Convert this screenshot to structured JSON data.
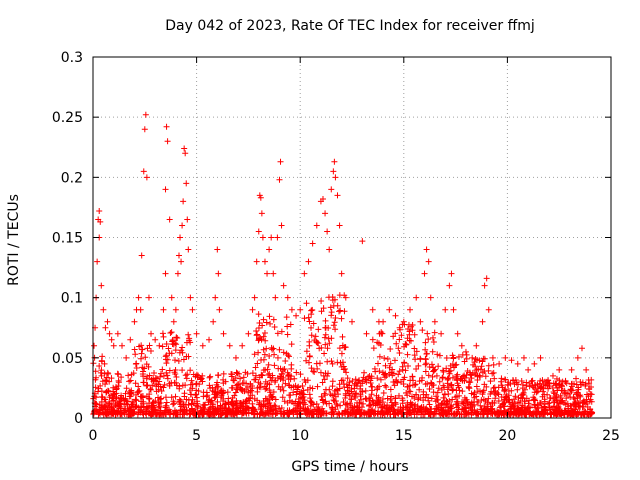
{
  "chart_data": {
    "type": "scatter",
    "title": "Day 042 of 2023, Rate Of TEC Index for receiver ffmj",
    "xlabel": "GPS time / hours",
    "ylabel": "ROTI / TECUs",
    "xlim": [
      0,
      25
    ],
    "ylim": [
      0,
      0.3
    ],
    "x_ticks": [
      0,
      5,
      10,
      15,
      20,
      25
    ],
    "y_ticks": [
      0,
      0.05,
      0.1,
      0.15,
      0.2,
      0.25,
      0.3
    ],
    "x_tick_labels": [
      "0",
      "5",
      "10",
      "15",
      "20",
      "25"
    ],
    "y_tick_labels": [
      "0",
      "0.05",
      "0.1",
      "0.15",
      "0.2",
      "0.25",
      "0.3"
    ],
    "grid": true,
    "marker": "+",
    "color": "#ff0000",
    "series": [
      {
        "values": [
          [
            0.05,
            0.06
          ],
          [
            0.1,
            0.075
          ],
          [
            0.15,
            0.1
          ],
          [
            0.2,
            0.13
          ],
          [
            0.25,
            0.165
          ],
          [
            0.3,
            0.172
          ],
          [
            0.3,
            0.15
          ],
          [
            0.35,
            0.163
          ],
          [
            0.4,
            0.11
          ],
          [
            0.5,
            0.09
          ],
          [
            0.6,
            0.075
          ],
          [
            0.7,
            0.08
          ],
          [
            0.8,
            0.07
          ],
          [
            0.9,
            0.065
          ],
          [
            1.0,
            0.06
          ],
          [
            1.2,
            0.07
          ],
          [
            1.4,
            0.06
          ],
          [
            1.6,
            0.05
          ],
          [
            1.8,
            0.065
          ],
          [
            2.0,
            0.08
          ],
          [
            2.1,
            0.09
          ],
          [
            2.2,
            0.1
          ],
          [
            2.3,
            0.09
          ],
          [
            2.35,
            0.135
          ],
          [
            2.45,
            0.205
          ],
          [
            2.5,
            0.24
          ],
          [
            2.55,
            0.252
          ],
          [
            2.6,
            0.2
          ],
          [
            2.7,
            0.1
          ],
          [
            2.8,
            0.07
          ],
          [
            3.0,
            0.065
          ],
          [
            3.2,
            0.06
          ],
          [
            3.4,
            0.09
          ],
          [
            3.5,
            0.12
          ],
          [
            3.5,
            0.19
          ],
          [
            3.55,
            0.242
          ],
          [
            3.6,
            0.23
          ],
          [
            3.7,
            0.165
          ],
          [
            3.8,
            0.1
          ],
          [
            3.9,
            0.08
          ],
          [
            4.0,
            0.09
          ],
          [
            4.1,
            0.12
          ],
          [
            4.15,
            0.135
          ],
          [
            4.2,
            0.15
          ],
          [
            4.25,
            0.13
          ],
          [
            4.3,
            0.16
          ],
          [
            4.35,
            0.18
          ],
          [
            4.4,
            0.224
          ],
          [
            4.45,
            0.22
          ],
          [
            4.5,
            0.195
          ],
          [
            4.55,
            0.165
          ],
          [
            4.6,
            0.14
          ],
          [
            4.7,
            0.1
          ],
          [
            4.8,
            0.09
          ],
          [
            5.0,
            0.07
          ],
          [
            5.3,
            0.06
          ],
          [
            5.6,
            0.065
          ],
          [
            5.8,
            0.08
          ],
          [
            5.9,
            0.1
          ],
          [
            6.0,
            0.14
          ],
          [
            6.05,
            0.12
          ],
          [
            6.1,
            0.09
          ],
          [
            6.3,
            0.07
          ],
          [
            6.6,
            0.06
          ],
          [
            6.9,
            0.05
          ],
          [
            7.2,
            0.06
          ],
          [
            7.5,
            0.07
          ],
          [
            7.7,
            0.09
          ],
          [
            7.8,
            0.1
          ],
          [
            7.9,
            0.13
          ],
          [
            8.0,
            0.155
          ],
          [
            8.05,
            0.185
          ],
          [
            8.1,
            0.183
          ],
          [
            8.15,
            0.17
          ],
          [
            8.2,
            0.15
          ],
          [
            8.3,
            0.13
          ],
          [
            8.4,
            0.12
          ],
          [
            8.5,
            0.14
          ],
          [
            8.6,
            0.15
          ],
          [
            8.7,
            0.12
          ],
          [
            8.8,
            0.1
          ],
          [
            8.9,
            0.15
          ],
          [
            9.0,
            0.198
          ],
          [
            9.05,
            0.213
          ],
          [
            9.1,
            0.16
          ],
          [
            9.2,
            0.11
          ],
          [
            9.4,
            0.1
          ],
          [
            9.6,
            0.09
          ],
          [
            9.8,
            0.085
          ],
          [
            10.0,
            0.09
          ],
          [
            10.2,
            0.12
          ],
          [
            10.4,
            0.13
          ],
          [
            10.6,
            0.145
          ],
          [
            10.8,
            0.16
          ],
          [
            11.0,
            0.18
          ],
          [
            11.1,
            0.182
          ],
          [
            11.2,
            0.17
          ],
          [
            11.3,
            0.155
          ],
          [
            11.4,
            0.14
          ],
          [
            11.5,
            0.19
          ],
          [
            11.6,
            0.205
          ],
          [
            11.65,
            0.213
          ],
          [
            11.7,
            0.2
          ],
          [
            11.8,
            0.185
          ],
          [
            11.9,
            0.16
          ],
          [
            12.0,
            0.12
          ],
          [
            12.2,
            0.1
          ],
          [
            12.5,
            0.08
          ],
          [
            13.0,
            0.147
          ],
          [
            13.2,
            0.07
          ],
          [
            13.5,
            0.09
          ],
          [
            13.8,
            0.08
          ],
          [
            14.0,
            0.08
          ],
          [
            14.3,
            0.09
          ],
          [
            14.6,
            0.085
          ],
          [
            14.8,
            0.075
          ],
          [
            15.0,
            0.08
          ],
          [
            15.3,
            0.09
          ],
          [
            15.6,
            0.1
          ],
          [
            15.8,
            0.08
          ],
          [
            16.0,
            0.12
          ],
          [
            16.1,
            0.14
          ],
          [
            16.2,
            0.13
          ],
          [
            16.3,
            0.1
          ],
          [
            16.5,
            0.08
          ],
          [
            16.8,
            0.07
          ],
          [
            17.0,
            0.09
          ],
          [
            17.2,
            0.11
          ],
          [
            17.3,
            0.12
          ],
          [
            17.4,
            0.09
          ],
          [
            17.6,
            0.07
          ],
          [
            17.8,
            0.06
          ],
          [
            18.0,
            0.055
          ],
          [
            18.3,
            0.05
          ],
          [
            18.5,
            0.06
          ],
          [
            18.8,
            0.08
          ],
          [
            18.9,
            0.11
          ],
          [
            19.0,
            0.116
          ],
          [
            19.1,
            0.09
          ],
          [
            19.3,
            0.05
          ],
          [
            19.6,
            0.045
          ],
          [
            19.9,
            0.05
          ],
          [
            20.2,
            0.048
          ],
          [
            20.5,
            0.045
          ],
          [
            20.8,
            0.05
          ],
          [
            21.0,
            0.04
          ],
          [
            21.3,
            0.045
          ],
          [
            21.6,
            0.05
          ],
          [
            21.9,
            0.03
          ],
          [
            22.2,
            0.035
          ],
          [
            22.5,
            0.04
          ],
          [
            22.8,
            0.03
          ],
          [
            23.1,
            0.04
          ],
          [
            23.4,
            0.05
          ],
          [
            23.6,
            0.058
          ],
          [
            23.8,
            0.04
          ],
          [
            24.0,
            0.02
          ]
        ]
      }
    ]
  }
}
